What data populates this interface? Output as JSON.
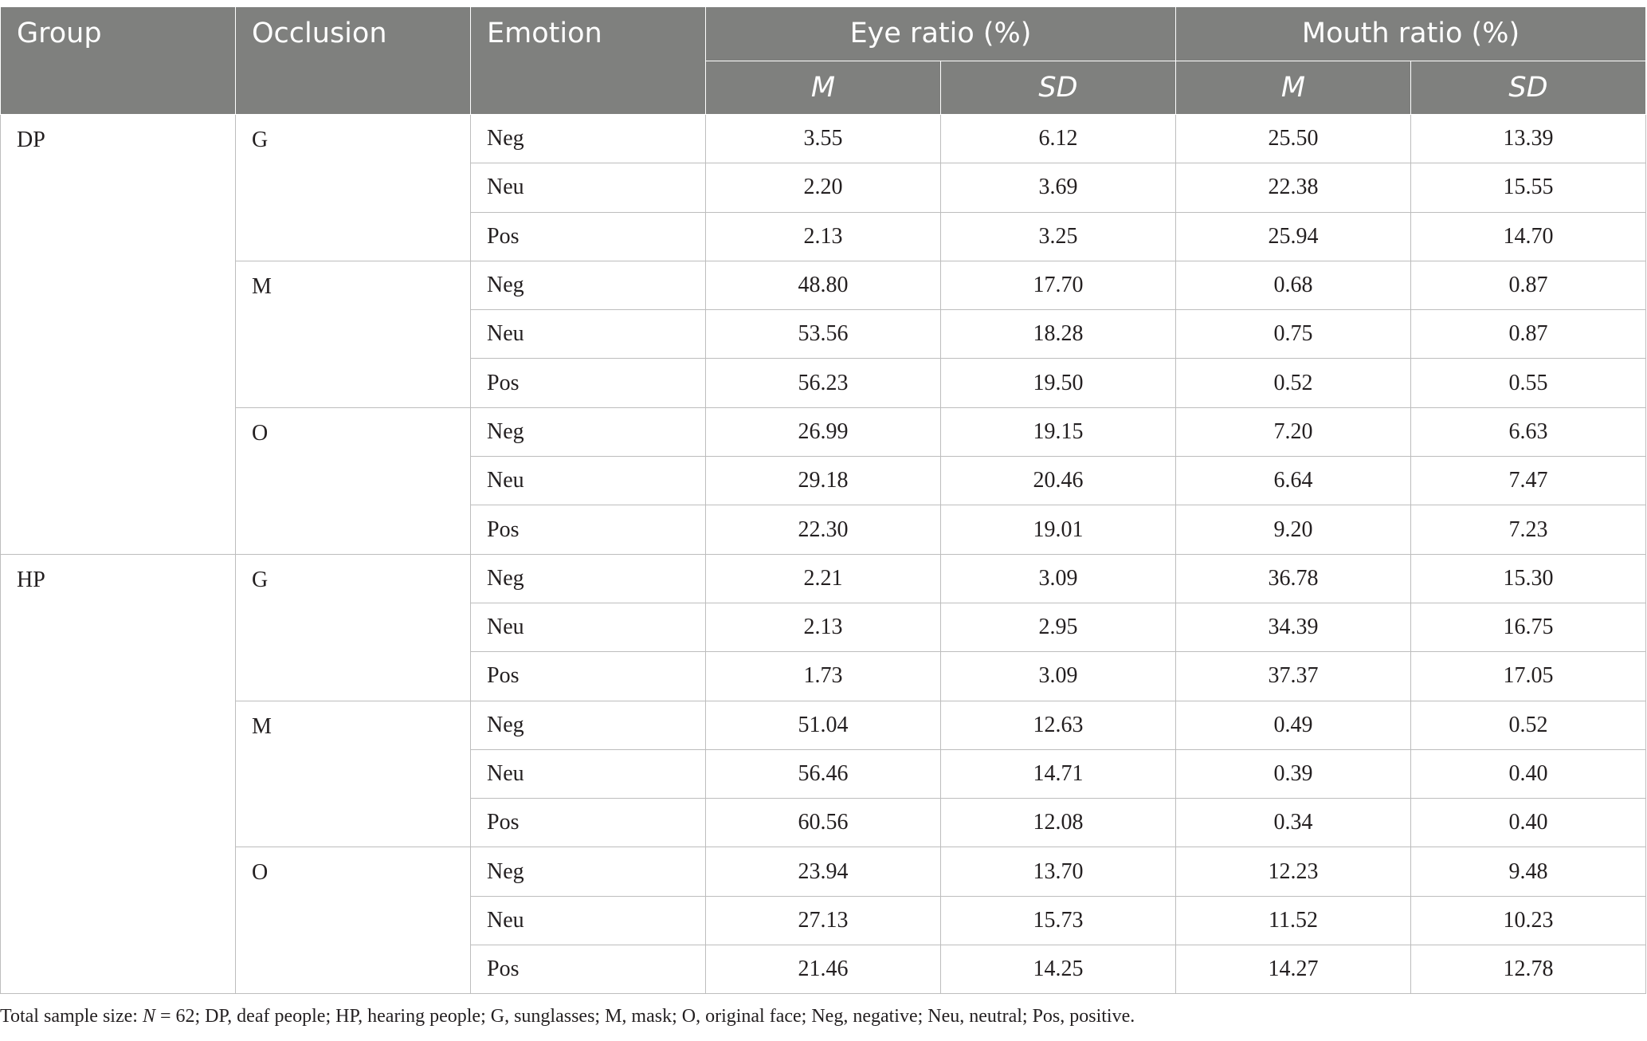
{
  "header": {
    "group": "Group",
    "occlusion": "Occlusion",
    "emotion": "Emotion",
    "eye_ratio": "Eye ratio (%)",
    "mouth_ratio": "Mouth ratio (%)",
    "m": "M",
    "sd": "SD"
  },
  "rows": [
    {
      "group": "DP",
      "occlusion": "G",
      "emotion": "Neg",
      "eye_m": "3.55",
      "eye_sd": "6.12",
      "mouth_m": "25.50",
      "mouth_sd": "13.39"
    },
    {
      "group": "",
      "occlusion": "",
      "emotion": "Neu",
      "eye_m": "2.20",
      "eye_sd": "3.69",
      "mouth_m": "22.38",
      "mouth_sd": "15.55"
    },
    {
      "group": "",
      "occlusion": "",
      "emotion": "Pos",
      "eye_m": "2.13",
      "eye_sd": "3.25",
      "mouth_m": "25.94",
      "mouth_sd": "14.70"
    },
    {
      "group": "",
      "occlusion": "M",
      "emotion": "Neg",
      "eye_m": "48.80",
      "eye_sd": "17.70",
      "mouth_m": "0.68",
      "mouth_sd": "0.87"
    },
    {
      "group": "",
      "occlusion": "",
      "emotion": "Neu",
      "eye_m": "53.56",
      "eye_sd": "18.28",
      "mouth_m": "0.75",
      "mouth_sd": "0.87"
    },
    {
      "group": "",
      "occlusion": "",
      "emotion": "Pos",
      "eye_m": "56.23",
      "eye_sd": "19.50",
      "mouth_m": "0.52",
      "mouth_sd": "0.55"
    },
    {
      "group": "",
      "occlusion": "O",
      "emotion": "Neg",
      "eye_m": "26.99",
      "eye_sd": "19.15",
      "mouth_m": "7.20",
      "mouth_sd": "6.63"
    },
    {
      "group": "",
      "occlusion": "",
      "emotion": "Neu",
      "eye_m": "29.18",
      "eye_sd": "20.46",
      "mouth_m": "6.64",
      "mouth_sd": "7.47"
    },
    {
      "group": "",
      "occlusion": "",
      "emotion": "Pos",
      "eye_m": "22.30",
      "eye_sd": "19.01",
      "mouth_m": "9.20",
      "mouth_sd": "7.23"
    },
    {
      "group": "HP",
      "occlusion": "G",
      "emotion": "Neg",
      "eye_m": "2.21",
      "eye_sd": "3.09",
      "mouth_m": "36.78",
      "mouth_sd": "15.30"
    },
    {
      "group": "",
      "occlusion": "",
      "emotion": "Neu",
      "eye_m": "2.13",
      "eye_sd": "2.95",
      "mouth_m": "34.39",
      "mouth_sd": "16.75"
    },
    {
      "group": "",
      "occlusion": "",
      "emotion": "Pos",
      "eye_m": "1.73",
      "eye_sd": "3.09",
      "mouth_m": "37.37",
      "mouth_sd": "17.05"
    },
    {
      "group": "",
      "occlusion": "M",
      "emotion": "Neg",
      "eye_m": "51.04",
      "eye_sd": "12.63",
      "mouth_m": "0.49",
      "mouth_sd": "0.52"
    },
    {
      "group": "",
      "occlusion": "",
      "emotion": "Neu",
      "eye_m": "56.46",
      "eye_sd": "14.71",
      "mouth_m": "0.39",
      "mouth_sd": "0.40"
    },
    {
      "group": "",
      "occlusion": "",
      "emotion": "Pos",
      "eye_m": "60.56",
      "eye_sd": "12.08",
      "mouth_m": "0.34",
      "mouth_sd": "0.40"
    },
    {
      "group": "",
      "occlusion": "O",
      "emotion": "Neg",
      "eye_m": "23.94",
      "eye_sd": "13.70",
      "mouth_m": "12.23",
      "mouth_sd": "9.48"
    },
    {
      "group": "",
      "occlusion": "",
      "emotion": "Neu",
      "eye_m": "27.13",
      "eye_sd": "15.73",
      "mouth_m": "11.52",
      "mouth_sd": "10.23"
    },
    {
      "group": "",
      "occlusion": "",
      "emotion": "Pos",
      "eye_m": "21.46",
      "eye_sd": "14.25",
      "mouth_m": "14.27",
      "mouth_sd": "12.78"
    }
  ],
  "footnote": {
    "prefix": "Total sample size: ",
    "n_symbol": "N",
    "rest": " = 62; DP, deaf people; HP, hearing people; G, sunglasses; M, mask; O, original face; Neg, negative; Neu, neutral; Pos, positive."
  },
  "colors": {
    "header_bg": "#7f807e",
    "header_text": "#ffffff",
    "grid": "#bdbdbd",
    "body_text": "#231f20"
  }
}
